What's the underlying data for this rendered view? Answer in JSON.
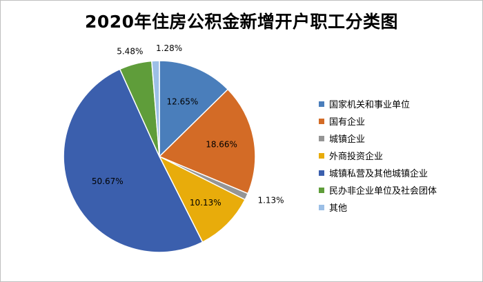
{
  "chart_data": {
    "type": "pie",
    "title": "2020年住房公积金新增开户职工分类图",
    "categories": [
      "国家机关和事业单位",
      "国有企业",
      "城镇企业",
      "外商投资企业",
      "城镇私营及其他城镇企业",
      "民办非企业单位及社会团体",
      "其他"
    ],
    "values": [
      12.65,
      18.66,
      1.13,
      10.13,
      50.67,
      5.48,
      1.28
    ],
    "labels": [
      "12.65%",
      "18.66%",
      "1.13%",
      "10.13%",
      "50.67%",
      "5.48%",
      "1.28%"
    ],
    "colors": [
      "#4a7ebb",
      "#d36b26",
      "#959595",
      "#e8ac0b",
      "#3b5fad",
      "#5f9d3a",
      "#9cbfe6"
    ],
    "legend_position": "right",
    "start_angle_deg": 0,
    "direction": "clockwise"
  }
}
